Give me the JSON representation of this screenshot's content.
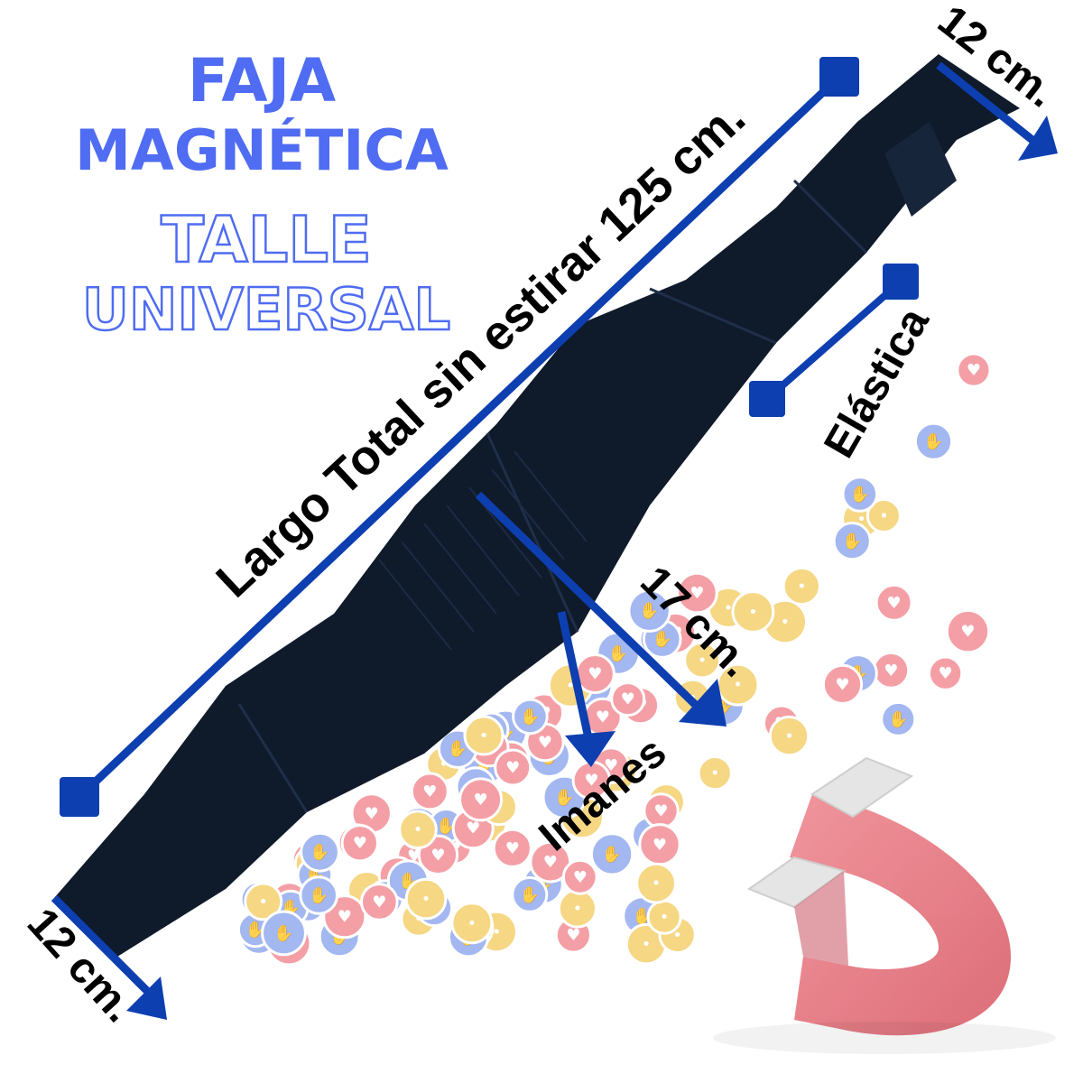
{
  "title": {
    "line1": "FAJA",
    "line2": "MAGNÉTICA",
    "line3": "TALLE",
    "line4": "UNIVERSAL"
  },
  "labels": {
    "total_length": "Largo Total sin estirar 125 cm.",
    "width_top": "12 cm.",
    "width_bottom": "12 cm.",
    "width_center": "17 cm.",
    "elastic": "Elástica",
    "magnets": "Imanes"
  },
  "colors": {
    "title_blue": "#4f6cf2",
    "arrow_blue": "#0d3fb0",
    "belt": "#0f1a2b",
    "belt_panel": "#17253b",
    "magnet_red": "#e8707a",
    "magnet_tip": "#d8d8d8",
    "heart_bubble": "#f28b93",
    "like_bubble": "#8fa8ee",
    "wow_bubble": "#f3cf6a"
  },
  "icons": {
    "heart": "heart-reaction-icon",
    "like": "like-reaction-icon",
    "wow": "wow-reaction-icon",
    "magnet": "horseshoe-magnet-icon"
  }
}
